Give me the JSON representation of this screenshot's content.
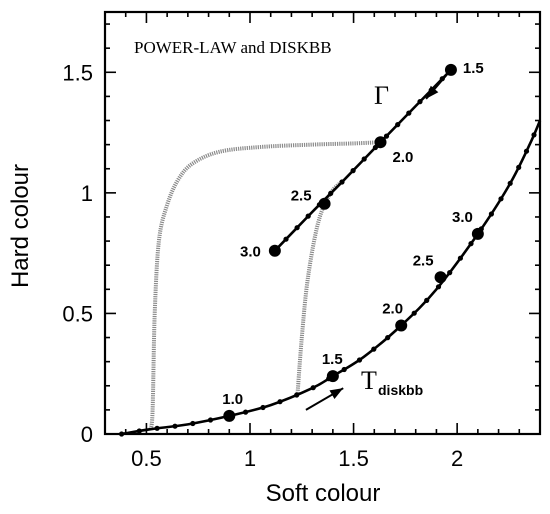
{
  "chart_data": {
    "type": "line",
    "title": "POWER-LAW and DISKBB",
    "xlabel": "Soft colour",
    "ylabel": "Hard colour",
    "xlim": [
      0.3,
      2.4
    ],
    "ylim": [
      0,
      1.75
    ],
    "xticks": [
      "0.5",
      "1",
      "1.5",
      "2"
    ],
    "yticks": [
      "0",
      "0.5",
      "1",
      "1.5"
    ],
    "grid": false,
    "legend": "none",
    "series": [
      {
        "line_x": [
          1.12,
          1.3,
          1.45,
          1.63,
          1.8,
          1.97
        ],
        "line_y": [
          0.76,
          0.92,
          1.05,
          1.21,
          1.36,
          1.51
        ],
        "markers": [
          {
            "x": 1.97,
            "y": 1.51,
            "label": "1.5"
          },
          {
            "x": 1.63,
            "y": 1.21,
            "label": "2.0"
          },
          {
            "x": 1.36,
            "y": 0.955,
            "label": "2.5"
          },
          {
            "x": 1.12,
            "y": 0.76,
            "label": "3.0"
          }
        ],
        "symbol": "Γ",
        "color": "#000000"
      },
      {
        "line_x": [
          0.38,
          0.52,
          0.7,
          0.9,
          1.1,
          1.3,
          1.4,
          1.55,
          1.73,
          1.9,
          2.1,
          2.25,
          2.35,
          2.4
        ],
        "line_y": [
          0.0,
          0.02,
          0.04,
          0.075,
          0.12,
          0.19,
          0.24,
          0.32,
          0.45,
          0.6,
          0.83,
          1.03,
          1.2,
          1.3
        ],
        "markers": [
          {
            "x": 0.9,
            "y": 0.075,
            "label": "1.0"
          },
          {
            "x": 1.4,
            "y": 0.24,
            "label": "1.5"
          },
          {
            "x": 1.73,
            "y": 0.45,
            "label": "2.0"
          },
          {
            "x": 1.92,
            "y": 0.65,
            "label": "2.5"
          },
          {
            "x": 2.1,
            "y": 0.83,
            "label": "3.0"
          }
        ],
        "symbol": "T",
        "symbol_sub": "diskbb",
        "color": "#000000"
      }
    ],
    "gray_tracks": [
      {
        "x": [
          0.52,
          0.53,
          0.54,
          0.56,
          0.6,
          0.65,
          0.72,
          0.85,
          1.05,
          1.3,
          1.5,
          1.63
        ],
        "y": [
          0.02,
          0.1,
          0.5,
          0.8,
          0.95,
          1.05,
          1.12,
          1.17,
          1.19,
          1.2,
          1.205,
          1.21
        ]
      },
      {
        "x": [
          1.23,
          1.25,
          1.28,
          1.33,
          1.39,
          1.45
        ],
        "y": [
          0.17,
          0.4,
          0.65,
          0.88,
          1.0,
          1.05
        ]
      }
    ],
    "arrows": [
      {
        "x1": 1.98,
        "y1": 1.52,
        "x2": 1.85,
        "y2": 1.39
      },
      {
        "x1": 1.27,
        "y1": 0.1,
        "x2": 1.45,
        "y2": 0.19
      }
    ]
  },
  "tick_label_color": "#000000",
  "gray_track_color": "#8a8a8a"
}
